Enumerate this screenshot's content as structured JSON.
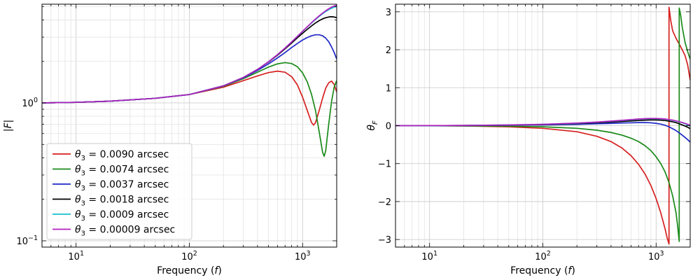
{
  "chart_data": [
    {
      "type": "line",
      "xlabel": "Frequency (f)",
      "ylabel": "|F|",
      "xscale": "log",
      "yscale": "log",
      "xlim": [
        5,
        2000
      ],
      "ylim": [
        0.09,
        5.2
      ],
      "grid": true,
      "legend_placement": "lower-left",
      "x_ticks": [
        {
          "value": 10,
          "base": "10",
          "exp": "1"
        },
        {
          "value": 100,
          "base": "10",
          "exp": "2"
        },
        {
          "value": 1000,
          "base": "10",
          "exp": "3"
        }
      ],
      "y_ticks": [
        {
          "value": 0.1,
          "base": "10",
          "exp": "−1"
        },
        {
          "value": 1,
          "base": "10",
          "exp": "0"
        }
      ],
      "series": [
        {
          "name": "θ3 = 0.0090 arcsec",
          "label_symbol": "θ",
          "label_sub": "3",
          "label_rest": " = 0.0090 arcsec",
          "color": "#d62020",
          "x": [
            5,
            10,
            20,
            50,
            100,
            200,
            300,
            400,
            500,
            600,
            700,
            800,
            900,
            1000,
            1100,
            1200,
            1250,
            1300,
            1400,
            1500,
            1600,
            1700,
            1800,
            1900,
            2000
          ],
          "y": [
            1.0,
            1.01,
            1.03,
            1.08,
            1.15,
            1.3,
            1.45,
            1.57,
            1.66,
            1.7,
            1.67,
            1.55,
            1.35,
            1.1,
            0.88,
            0.72,
            0.69,
            0.72,
            0.88,
            1.08,
            1.28,
            1.4,
            1.44,
            1.36,
            1.2
          ]
        },
        {
          "name": "θ3 = 0.0074 arcsec",
          "label_symbol": "θ",
          "label_sub": "3",
          "label_rest": " = 0.0074 arcsec",
          "color": "#1a8a1a",
          "x": [
            5,
            10,
            20,
            50,
            100,
            200,
            300,
            400,
            500,
            600,
            700,
            800,
            900,
            1000,
            1100,
            1200,
            1300,
            1400,
            1500,
            1550,
            1600,
            1700,
            1800,
            1900,
            2000
          ],
          "y": [
            1.0,
            1.01,
            1.03,
            1.08,
            1.15,
            1.32,
            1.5,
            1.67,
            1.82,
            1.92,
            1.96,
            1.93,
            1.83,
            1.65,
            1.42,
            1.15,
            0.88,
            0.62,
            0.44,
            0.41,
            0.45,
            0.7,
            1.02,
            1.3,
            1.45
          ]
        },
        {
          "name": "θ3 = 0.0037 arcsec",
          "label_symbol": "θ",
          "label_sub": "3",
          "label_rest": " = 0.0037 arcsec",
          "color": "#1f28c8",
          "x": [
            5,
            10,
            20,
            50,
            100,
            200,
            300,
            400,
            500,
            600,
            700,
            800,
            900,
            1000,
            1100,
            1200,
            1300,
            1400,
            1500,
            1600,
            1700,
            1800,
            1900,
            2000
          ],
          "y": [
            1.0,
            1.01,
            1.03,
            1.08,
            1.15,
            1.33,
            1.52,
            1.72,
            1.92,
            2.12,
            2.32,
            2.52,
            2.7,
            2.86,
            2.98,
            3.07,
            3.12,
            3.12,
            3.07,
            2.95,
            2.78,
            2.55,
            2.32,
            2.08
          ]
        },
        {
          "name": "θ3 = 0.0018 arcsec",
          "label_symbol": "θ",
          "label_sub": "3",
          "label_rest": " = 0.0018 arcsec",
          "color": "#000000",
          "x": [
            5,
            10,
            20,
            50,
            100,
            200,
            300,
            400,
            500,
            600,
            700,
            800,
            900,
            1000,
            1100,
            1200,
            1300,
            1400,
            1500,
            1600,
            1700,
            1800,
            1900,
            2000
          ],
          "y": [
            1.0,
            1.01,
            1.03,
            1.08,
            1.15,
            1.33,
            1.53,
            1.75,
            1.98,
            2.22,
            2.47,
            2.72,
            2.97,
            3.2,
            3.42,
            3.62,
            3.8,
            3.95,
            4.07,
            4.15,
            4.2,
            4.22,
            4.2,
            4.15
          ]
        },
        {
          "name": "θ3 = 0.0009 arcsec",
          "label_symbol": "θ",
          "label_sub": "3",
          "label_rest": " = 0.0009 arcsec",
          "color": "#17becf",
          "x": [
            5,
            10,
            20,
            50,
            100,
            200,
            300,
            400,
            500,
            600,
            700,
            800,
            900,
            1000,
            1100,
            1200,
            1300,
            1400,
            1500,
            1600,
            1700,
            1800,
            1900,
            2000
          ],
          "y": [
            1.0,
            1.01,
            1.03,
            1.08,
            1.15,
            1.33,
            1.53,
            1.75,
            1.99,
            2.24,
            2.5,
            2.77,
            3.04,
            3.3,
            3.56,
            3.8,
            4.03,
            4.24,
            4.43,
            4.6,
            4.74,
            4.86,
            4.95,
            5.0
          ]
        },
        {
          "name": "θ3 = 0.00009 arcsec",
          "label_symbol": "θ",
          "label_sub": "3",
          "label_rest": " = 0.00009 arcsec",
          "color": "#b020c0",
          "x": [
            5,
            10,
            20,
            50,
            100,
            200,
            300,
            400,
            500,
            600,
            700,
            800,
            900,
            1000,
            1100,
            1200,
            1300,
            1400,
            1500,
            1600,
            1700,
            1800,
            1900,
            2000
          ],
          "y": [
            1.0,
            1.01,
            1.03,
            1.08,
            1.15,
            1.33,
            1.53,
            1.75,
            1.99,
            2.24,
            2.5,
            2.77,
            3.04,
            3.31,
            3.57,
            3.82,
            4.06,
            4.28,
            4.48,
            4.66,
            4.82,
            4.95,
            5.05,
            5.12
          ]
        }
      ]
    },
    {
      "type": "line",
      "xlabel": "Frequency (f)",
      "ylabel": "θF",
      "ylabel_symbol": "θ",
      "ylabel_sub": "F",
      "xscale": "log",
      "yscale": "linear",
      "xlim": [
        5,
        2000
      ],
      "ylim": [
        -3.2,
        3.2
      ],
      "grid": true,
      "x_ticks": [
        {
          "value": 10,
          "base": "10",
          "exp": "1"
        },
        {
          "value": 100,
          "base": "10",
          "exp": "2"
        },
        {
          "value": 1000,
          "base": "10",
          "exp": "3"
        }
      ],
      "y_ticks": [
        {
          "value": 3,
          "label": "3"
        },
        {
          "value": 2,
          "label": "2"
        },
        {
          "value": 1,
          "label": "1"
        },
        {
          "value": 0,
          "label": "0"
        },
        {
          "value": -1,
          "label": "−1"
        },
        {
          "value": -2,
          "label": "−2"
        },
        {
          "value": -3,
          "label": "−3"
        }
      ],
      "series": [
        {
          "color": "#d62020",
          "x": [
            5,
            10,
            20,
            50,
            100,
            200,
            300,
            400,
            500,
            600,
            700,
            800,
            900,
            1000,
            1100,
            1200,
            1250,
            1300,
            1300,
            1350,
            1400,
            1500,
            1600,
            1700,
            1800,
            1900,
            2000
          ],
          "y": [
            0,
            -0.002,
            -0.008,
            -0.03,
            -0.07,
            -0.16,
            -0.28,
            -0.42,
            -0.59,
            -0.79,
            -1.02,
            -1.28,
            -1.58,
            -1.92,
            -2.3,
            -2.72,
            -2.95,
            -3.12,
            3.12,
            2.75,
            2.5,
            2.3,
            2.15,
            2.0,
            1.85,
            1.6,
            1.2
          ]
        },
        {
          "color": "#1a8a1a",
          "x": [
            5,
            10,
            20,
            50,
            100,
            200,
            300,
            400,
            500,
            600,
            700,
            800,
            900,
            1000,
            1100,
            1200,
            1300,
            1400,
            1500,
            1550,
            1580,
            1600,
            1600,
            1650,
            1700,
            1800,
            1900,
            2000
          ],
          "y": [
            0,
            -0.001,
            -0.005,
            -0.015,
            -0.03,
            -0.07,
            -0.12,
            -0.18,
            -0.25,
            -0.33,
            -0.42,
            -0.53,
            -0.66,
            -0.82,
            -1.0,
            -1.22,
            -1.5,
            -1.85,
            -2.3,
            -2.65,
            -2.9,
            -3.05,
            3.1,
            2.9,
            2.6,
            2.2,
            1.95,
            1.75
          ]
        },
        {
          "color": "#1f28c8",
          "x": [
            5,
            10,
            20,
            50,
            100,
            200,
            300,
            400,
            500,
            600,
            700,
            800,
            900,
            1000,
            1100,
            1200,
            1300,
            1400,
            1500,
            1600,
            1700,
            1800,
            1900,
            2000
          ],
          "y": [
            0,
            0.001,
            0.003,
            0.01,
            0.02,
            0.035,
            0.05,
            0.06,
            0.07,
            0.075,
            0.08,
            0.08,
            0.075,
            0.06,
            0.04,
            0.01,
            -0.03,
            -0.08,
            -0.13,
            -0.19,
            -0.25,
            -0.31,
            -0.37,
            -0.43
          ]
        },
        {
          "color": "#000000",
          "x": [
            5,
            10,
            20,
            50,
            100,
            200,
            300,
            400,
            500,
            600,
            700,
            800,
            900,
            1000,
            1100,
            1200,
            1300,
            1400,
            1500,
            1600,
            1700,
            1800,
            1900,
            2000
          ],
          "y": [
            0,
            0.002,
            0.005,
            0.015,
            0.03,
            0.055,
            0.075,
            0.095,
            0.11,
            0.125,
            0.135,
            0.145,
            0.15,
            0.15,
            0.145,
            0.135,
            0.12,
            0.1,
            0.08,
            0.05,
            0.02,
            -0.01,
            -0.04,
            -0.08
          ]
        },
        {
          "color": "#17becf",
          "x": [
            5,
            10,
            20,
            50,
            100,
            200,
            300,
            400,
            500,
            600,
            700,
            800,
            900,
            1000,
            1100,
            1200,
            1300,
            1400,
            1500,
            1600,
            1700,
            1800,
            1900,
            2000
          ],
          "y": [
            0,
            0.002,
            0.006,
            0.018,
            0.035,
            0.065,
            0.09,
            0.115,
            0.135,
            0.155,
            0.17,
            0.18,
            0.185,
            0.185,
            0.18,
            0.17,
            0.155,
            0.14,
            0.12,
            0.1,
            0.08,
            0.05,
            0.02,
            -0.01
          ]
        },
        {
          "color": "#b020c0",
          "x": [
            5,
            10,
            20,
            50,
            100,
            200,
            300,
            400,
            500,
            600,
            700,
            800,
            900,
            1000,
            1100,
            1200,
            1300,
            1400,
            1500,
            1600,
            1700,
            1800,
            1900,
            2000
          ],
          "y": [
            0,
            0.002,
            0.006,
            0.018,
            0.036,
            0.068,
            0.095,
            0.12,
            0.14,
            0.16,
            0.175,
            0.185,
            0.19,
            0.19,
            0.185,
            0.175,
            0.16,
            0.145,
            0.125,
            0.105,
            0.085,
            0.06,
            0.035,
            0.01
          ]
        }
      ]
    }
  ]
}
